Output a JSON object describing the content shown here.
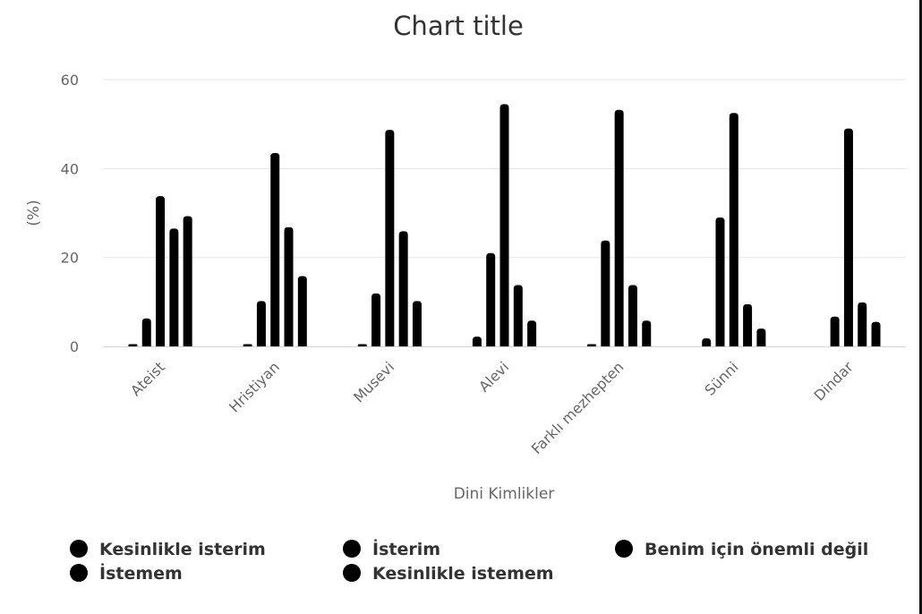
{
  "chart_data": {
    "type": "bar",
    "title": "Chart title",
    "xlabel": "Dini Kimlikler",
    "ylabel": "(%)",
    "ylim": [
      0,
      60
    ],
    "yticks": [
      0,
      20,
      40,
      60
    ],
    "grid": true,
    "legend_position": "bottom",
    "categories": [
      "Ateist",
      "Hristiyan",
      "Musevi",
      "Alevi",
      "Farklı mezhepten",
      "Sünni",
      "Dindar"
    ],
    "series": [
      {
        "name": "Kesinlikle isterim",
        "color": "#000000",
        "values": [
          0.5,
          0.5,
          0.5,
          2.2,
          0.5,
          1.8,
          0
        ]
      },
      {
        "name": "İsterim",
        "color": "#000000",
        "values": [
          6.3,
          10.2,
          11.9,
          21,
          23.8,
          29,
          6.7
        ]
      },
      {
        "name": "Benim için önemli değil",
        "color": "#000000",
        "values": [
          33.8,
          43.5,
          48.7,
          54.5,
          53.2,
          52.5,
          49
        ]
      },
      {
        "name": "İstemem",
        "color": "#000000",
        "values": [
          26.5,
          26.8,
          25.9,
          13.8,
          13.8,
          9.5,
          9.9
        ]
      },
      {
        "name": "Kesinlikle istemem",
        "color": "#000000",
        "values": [
          29.3,
          15.8,
          10.2,
          5.8,
          5.8,
          4,
          5.5
        ]
      }
    ]
  }
}
